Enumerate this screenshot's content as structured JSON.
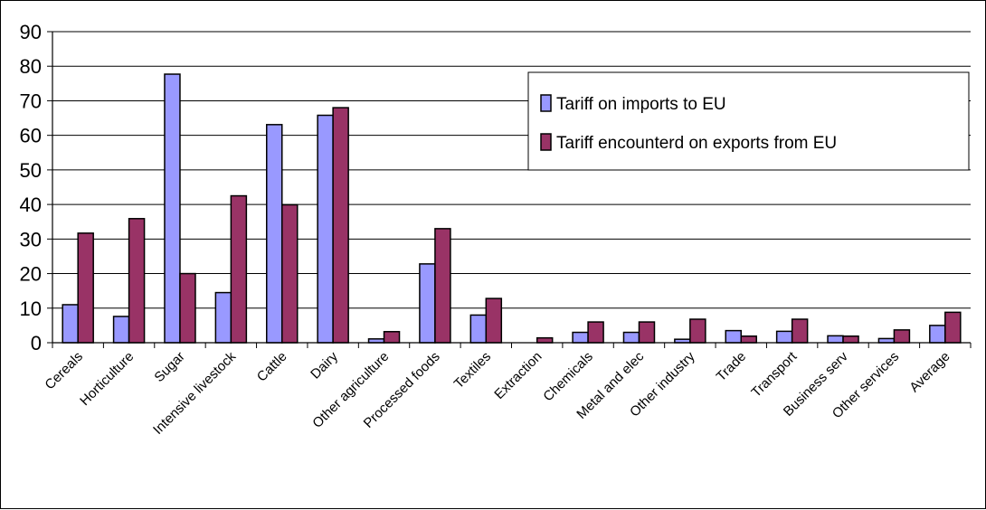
{
  "chart_data": {
    "type": "bar",
    "title": "",
    "xlabel": "",
    "ylabel": "",
    "ylim": [
      0,
      90
    ],
    "yticks": [
      0,
      10,
      20,
      30,
      40,
      50,
      60,
      70,
      80,
      90
    ],
    "grid": true,
    "legend_position": "top-right",
    "categories": [
      "Cereals",
      "Horticulture",
      "Sugar",
      "Intensive livestock",
      "Cattle",
      "Dairy",
      "Other agriculture",
      "Processed foods",
      "Textiles",
      "Extraction",
      "Chemicals",
      "Metal and elec",
      "Other industry",
      "Trade",
      "Transport",
      "Business serv",
      "Other services",
      "Average"
    ],
    "series": [
      {
        "name": "Tariff on imports to EU",
        "color": "#9999ff",
        "values": [
          11,
          7.6,
          77.7,
          14.5,
          63.1,
          65.8,
          1.1,
          22.8,
          8,
          0,
          3,
          3,
          1,
          3.5,
          3.3,
          2,
          1.2,
          5
        ]
      },
      {
        "name": "Tariff encounterd on exports from EU",
        "color": "#993366",
        "values": [
          31.7,
          35.9,
          20,
          42.5,
          39.9,
          68,
          3.2,
          33,
          12.8,
          1.4,
          6,
          6,
          6.8,
          1.9,
          6.8,
          1.9,
          3.7,
          8.8
        ]
      }
    ]
  }
}
